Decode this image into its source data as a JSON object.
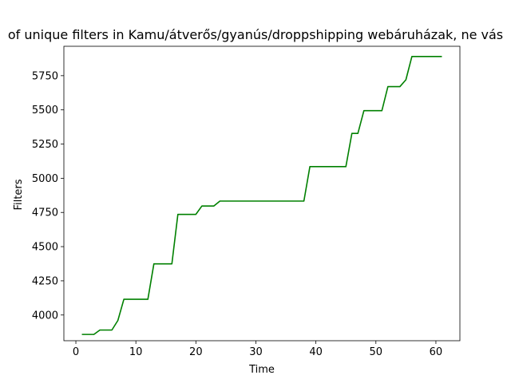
{
  "chart_data": {
    "type": "line",
    "title": "of unique filters in Kamu/átverős/gyanús/droppshipping webáruházak, ne vás",
    "xlabel": "Time",
    "ylabel": "Filters",
    "xlim": [
      -2,
      64
    ],
    "ylim": [
      3812,
      5965
    ],
    "xticks": [
      0,
      10,
      20,
      30,
      40,
      50,
      60
    ],
    "yticks": [
      4000,
      4250,
      4500,
      4750,
      5000,
      5250,
      5500,
      5750
    ],
    "grid": false,
    "series": [
      {
        "color": "#008000",
        "x": [
          1,
          2,
          3,
          4,
          5,
          6,
          7,
          8,
          9,
          10,
          11,
          12,
          13,
          14,
          15,
          16,
          17,
          18,
          19,
          20,
          21,
          22,
          23,
          24,
          25,
          26,
          27,
          28,
          29,
          30,
          31,
          32,
          33,
          34,
          35,
          36,
          37,
          38,
          39,
          40,
          41,
          42,
          43,
          44,
          45,
          46,
          47,
          48,
          49,
          50,
          51,
          52,
          53,
          54,
          55,
          56,
          57,
          58,
          59,
          60,
          61
        ],
        "y": [
          3858,
          3858,
          3858,
          3890,
          3890,
          3890,
          3960,
          4115,
          4115,
          4115,
          4115,
          4115,
          4374,
          4374,
          4374,
          4374,
          4736,
          4736,
          4736,
          4736,
          4797,
          4797,
          4797,
          4833,
          4833,
          4833,
          4833,
          4833,
          4833,
          4833,
          4833,
          4833,
          4833,
          4833,
          4833,
          4833,
          4833,
          4833,
          5085,
          5085,
          5085,
          5085,
          5085,
          5085,
          5085,
          5328,
          5328,
          5494,
          5494,
          5494,
          5494,
          5670,
          5670,
          5670,
          5720,
          5890,
          5890,
          5890,
          5890,
          5890,
          5890
        ]
      }
    ]
  }
}
